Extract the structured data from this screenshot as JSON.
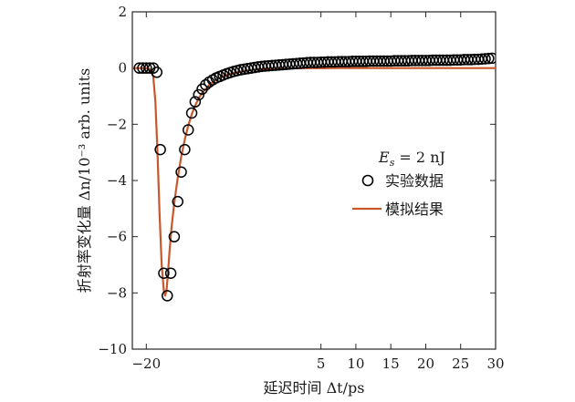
{
  "chart_data": {
    "type": "scatter",
    "xlabel": "延迟时间 Δt/ps",
    "ylabel": "折射率变化量 Δn/10⁻³ arb. units",
    "xlim": [
      -22,
      30
    ],
    "ylim": [
      -10,
      2
    ],
    "x_ticks": [
      -20,
      5,
      10,
      15,
      20,
      25,
      30
    ],
    "x_tick_labels": [
      "−20",
      "5",
      "10",
      "15",
      "20",
      "25",
      "30"
    ],
    "y_ticks": [
      2,
      0,
      -2,
      -4,
      -6,
      -8,
      -10
    ],
    "y_tick_labels": [
      "2",
      "0",
      "−2",
      "−4",
      "−6",
      "−8",
      "−10"
    ],
    "grid": false,
    "legend_title": "E_s = 2 nJ",
    "legend_position": "center-right",
    "series": [
      {
        "name": "实验数据",
        "kind": "scatter",
        "marker": "open-circle",
        "color": "#000000",
        "x": [
          -21.0,
          -20.5,
          -20.0,
          -19.5,
          -19.0,
          -18.5,
          -18.0,
          -17.5,
          -17.0,
          -16.5,
          -16.0,
          -15.5,
          -15.0,
          -14.5,
          -14.0,
          -13.5,
          -13.0,
          -12.5,
          -12.0,
          -11.5,
          -11.0,
          -10.5,
          -10.0,
          -9.5,
          -9.0,
          -8.5,
          -8.0,
          -7.5,
          -7.0,
          -6.5,
          -6.0,
          -5.5,
          -5.0,
          -4.5,
          -4.0,
          -3.5,
          -3.0,
          -2.5,
          -2.0,
          -1.5,
          -1.0,
          -0.5,
          0.0,
          0.5,
          1.0,
          1.5,
          2.0,
          2.5,
          3.0,
          3.5,
          4.0,
          4.5,
          5.0,
          5.5,
          6.0,
          6.5,
          7.0,
          7.5,
          8.0,
          8.5,
          9.0,
          9.5,
          10.0,
          10.5,
          11.0,
          11.5,
          12.0,
          12.5,
          13.0,
          13.5,
          14.0,
          14.5,
          15.0,
          15.5,
          16.0,
          16.5,
          17.0,
          17.5,
          18.0,
          18.5,
          19.0,
          19.5,
          20.0,
          20.5,
          21.0,
          21.5,
          22.0,
          22.5,
          23.0,
          23.5,
          24.0,
          24.5,
          25.0,
          25.5,
          26.0,
          26.5,
          27.0,
          27.5,
          28.0,
          28.5,
          29.0,
          29.5
        ],
        "y": [
          0.0,
          0.0,
          0.0,
          0.0,
          0.0,
          -0.15,
          -2.9,
          -7.3,
          -8.1,
          -7.3,
          -6.0,
          -4.75,
          -3.7,
          -2.9,
          -2.2,
          -1.6,
          -1.2,
          -0.95,
          -0.75,
          -0.6,
          -0.5,
          -0.42,
          -0.35,
          -0.3,
          -0.25,
          -0.2,
          -0.16,
          -0.12,
          -0.09,
          -0.06,
          -0.04,
          -0.02,
          0.0,
          0.02,
          0.04,
          0.06,
          0.07,
          0.08,
          0.09,
          0.1,
          0.11,
          0.12,
          0.13,
          0.14,
          0.15,
          0.16,
          0.17,
          0.18,
          0.19,
          0.2,
          0.2,
          0.2,
          0.21,
          0.21,
          0.22,
          0.22,
          0.22,
          0.23,
          0.23,
          0.23,
          0.23,
          0.24,
          0.24,
          0.24,
          0.24,
          0.24,
          0.25,
          0.25,
          0.25,
          0.25,
          0.25,
          0.25,
          0.25,
          0.26,
          0.26,
          0.26,
          0.26,
          0.26,
          0.27,
          0.27,
          0.27,
          0.27,
          0.27,
          0.27,
          0.28,
          0.28,
          0.28,
          0.28,
          0.28,
          0.28,
          0.29,
          0.29,
          0.29,
          0.3,
          0.3,
          0.3,
          0.31,
          0.31,
          0.32,
          0.33,
          0.34,
          0.35
        ]
      },
      {
        "name": "模拟结果",
        "kind": "line",
        "color": "#c8582c",
        "x": [
          -22.0,
          -20.0,
          -19.5,
          -19.0,
          -18.7,
          -18.4,
          -18.1,
          -17.8,
          -17.5,
          -17.3,
          -17.1,
          -16.9,
          -16.7,
          -16.4,
          -16.0,
          -15.5,
          -15.0,
          -14.5,
          -14.0,
          -13.5,
          -13.0,
          -12.5,
          -12.0,
          -11.0,
          -10.0,
          -9.0,
          -8.0,
          -7.0,
          -6.0,
          -5.0,
          -4.0,
          -3.0,
          -2.0,
          -1.0,
          0.0,
          1.0,
          2.0,
          3.0,
          4.0,
          6.0,
          8.0,
          10.0,
          12.0,
          14.0,
          16.0,
          18.0,
          20.0,
          22.0,
          24.0,
          26.0,
          28.0,
          30.0
        ],
        "y": [
          0.0,
          0.0,
          -0.05,
          -0.3,
          -1.2,
          -3.0,
          -5.2,
          -7.0,
          -7.9,
          -8.1,
          -7.9,
          -7.3,
          -6.6,
          -5.7,
          -4.8,
          -3.9,
          -3.15,
          -2.55,
          -2.05,
          -1.65,
          -1.33,
          -1.08,
          -0.88,
          -0.6,
          -0.42,
          -0.3,
          -0.21,
          -0.15,
          -0.1,
          -0.07,
          -0.05,
          -0.035,
          -0.025,
          -0.018,
          -0.013,
          -0.009,
          -0.006,
          -0.004,
          -0.003,
          -0.002,
          -0.001,
          0.0,
          0.0,
          0.0,
          0.0,
          0.0,
          0.0,
          0.0,
          0.0,
          0.0,
          0.0,
          0.0
        ]
      }
    ]
  }
}
